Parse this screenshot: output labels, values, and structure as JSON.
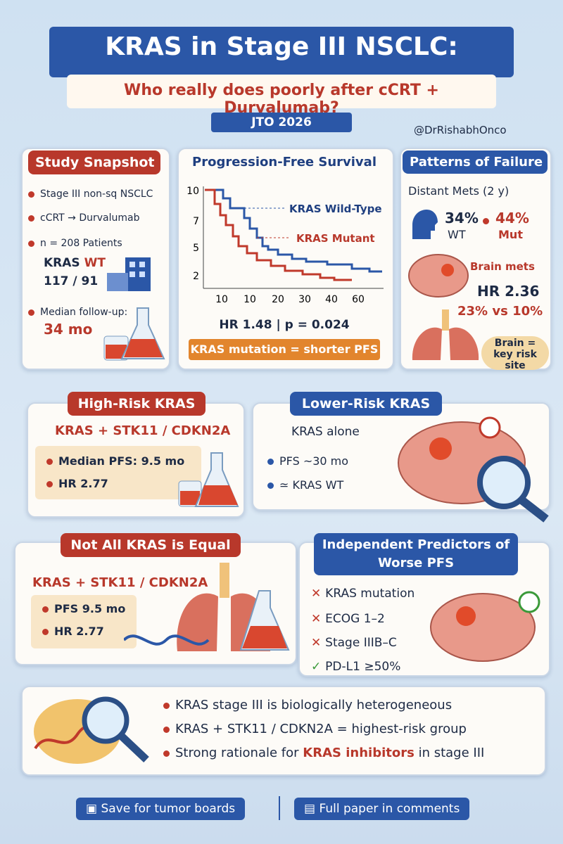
{
  "header": {
    "title": "KRAS in Stage III NSCLC:",
    "subtitle": "Who really does poorly after cCRT + Durvalumab?",
    "badge": "JTO 2026",
    "handle": "@DrRishabhOnco"
  },
  "snapshot": {
    "title": "Study Snapshot",
    "items": [
      "Stage III non-sq NSCLC",
      "cCRT → Durvalumab",
      "n = 208 Patients"
    ],
    "kras_label": "KRAS",
    "kras_wt": "WT",
    "kras_split": "117 / 91",
    "followup_label": "Median follow-up:",
    "followup_value": "34 mo"
  },
  "pfs": {
    "title": "Progression-Free Survival",
    "y_labels": [
      "10",
      "7",
      "5",
      "2"
    ],
    "x_labels": [
      "10",
      "10",
      "20",
      "30",
      "40",
      "60"
    ],
    "legend": [
      "KRAS Wild-Type",
      "KRAS Mutant"
    ],
    "stat": "HR 1.48 | p = 0.024",
    "banner": "KRAS mutation = shorter PFS"
  },
  "failure": {
    "title": "Patterns of Failure",
    "distant": "Distant Mets (2 y)",
    "wt_pct": "34%",
    "wt_label": "WT",
    "mut_pct": "44%",
    "mut_label": "Mut",
    "brain": "Brain mets",
    "hr": "HR 2.36",
    "compare": "23% vs 10%",
    "callout": "Brain = key risk site"
  },
  "high_risk": {
    "title": "High-Risk KRAS",
    "subtitle": "KRAS + STK11 / CDKN2A",
    "items": [
      "Median PFS: 9.5 mo",
      "HR 2.77"
    ]
  },
  "lower_risk": {
    "title": "Lower-Risk KRAS",
    "subtitle": "KRAS alone",
    "items": [
      "PFS ~30 mo",
      "≃ KRAS WT"
    ]
  },
  "not_equal": {
    "title": "Not All KRAS is Equal",
    "subtitle": "KRAS + STK11 / CDKN2A",
    "items": [
      "PFS 9.5 mo",
      "HR 2.77"
    ]
  },
  "predictors": {
    "title": [
      "Independent Predictors of",
      "Worse PFS"
    ],
    "items": [
      "KRAS mutation",
      "ECOG 1–2",
      "Stage IIIB–C",
      "PD-L1 ≥50%"
    ]
  },
  "conclusions": {
    "items": [
      "KRAS stage III is biologically heterogeneous",
      "KRAS + STK11 / CDKN2A = highest-risk group"
    ],
    "rationale": {
      "before": "Strong rationale for",
      "highlight": "KRAS inhibitors",
      "after": "in stage III"
    }
  },
  "footer": {
    "buttons": [
      "Save for tumor boards",
      "Full paper in comments"
    ]
  }
}
